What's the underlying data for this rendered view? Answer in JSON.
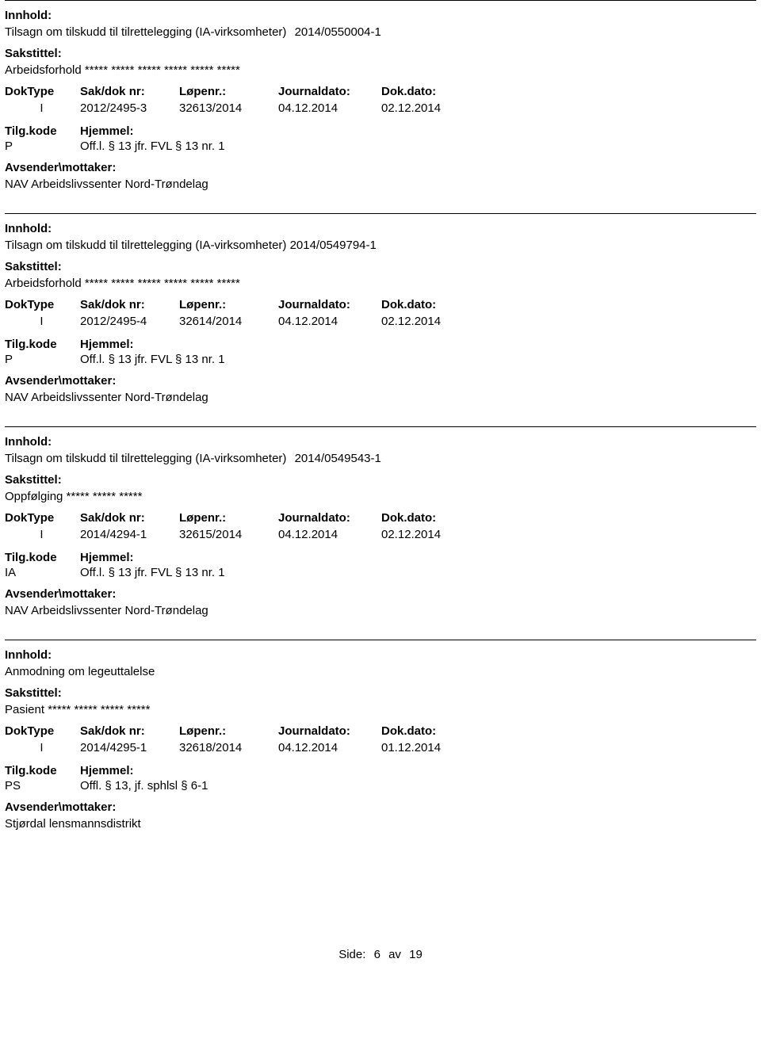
{
  "labels": {
    "innhold": "Innhold:",
    "sakstittel": "Sakstittel:",
    "doktype": "DokType",
    "sakdok": "Sak/dok nr:",
    "lopenr": "Løpenr.:",
    "journaldato": "Journaldato:",
    "dokdato": "Dok.dato:",
    "tilgkode": "Tilg.kode",
    "hjemmel": "Hjemmel:",
    "avsender": "Avsender\\mottaker:"
  },
  "entries": [
    {
      "innhold": "Tilsagn om tilskudd til tilrettelegging (IA-virksomheter)",
      "innhold_ref": "2014/0550004-1",
      "sakstittel": "Arbeidsforhold ***** ***** ***** ***** ***** *****",
      "doktype": "I",
      "sakdok": "2012/2495-3",
      "lopenr": "32613/2014",
      "journaldato": "04.12.2014",
      "dokdato": "02.12.2014",
      "tilgkode": "P",
      "hjemmel": "Off.l. § 13 jfr. FVL § 13 nr. 1",
      "avsender": "NAV Arbeidslivssenter Nord-Trøndelag"
    },
    {
      "innhold": "Tilsagn om tilskudd til tilrettelegging (IA-virksomheter) 2014/0549794-1",
      "innhold_ref": "",
      "sakstittel": "Arbeidsforhold ***** ***** ***** ***** ***** *****",
      "doktype": "I",
      "sakdok": "2012/2495-4",
      "lopenr": "32614/2014",
      "journaldato": "04.12.2014",
      "dokdato": "02.12.2014",
      "tilgkode": "P",
      "hjemmel": "Off.l. § 13 jfr. FVL § 13 nr. 1",
      "avsender": "NAV Arbeidslivssenter Nord-Trøndelag"
    },
    {
      "innhold": "Tilsagn om tilskudd til tilrettelegging (IA-virksomheter)",
      "innhold_ref": "2014/0549543-1",
      "sakstittel": "Oppfølging ***** ***** *****",
      "doktype": "I",
      "sakdok": "2014/4294-1",
      "lopenr": "32615/2014",
      "journaldato": "04.12.2014",
      "dokdato": "02.12.2014",
      "tilgkode": "IA",
      "hjemmel": "Off.l. § 13 jfr. FVL § 13 nr. 1",
      "avsender": "NAV Arbeidslivssenter Nord-Trøndelag"
    },
    {
      "innhold": "Anmodning om legeuttalelse",
      "innhold_ref": "",
      "sakstittel": "Pasient ***** ***** ***** *****",
      "doktype": "I",
      "sakdok": "2014/4295-1",
      "lopenr": "32618/2014",
      "journaldato": "04.12.2014",
      "dokdato": "01.12.2014",
      "tilgkode": "PS",
      "hjemmel": "Offl. § 13, jf. sphlsl § 6-1",
      "avsender": "Stjørdal lensmannsdistrikt"
    }
  ],
  "footer": {
    "side_label": "Side:",
    "page": "6",
    "av": "av",
    "total": "19"
  }
}
